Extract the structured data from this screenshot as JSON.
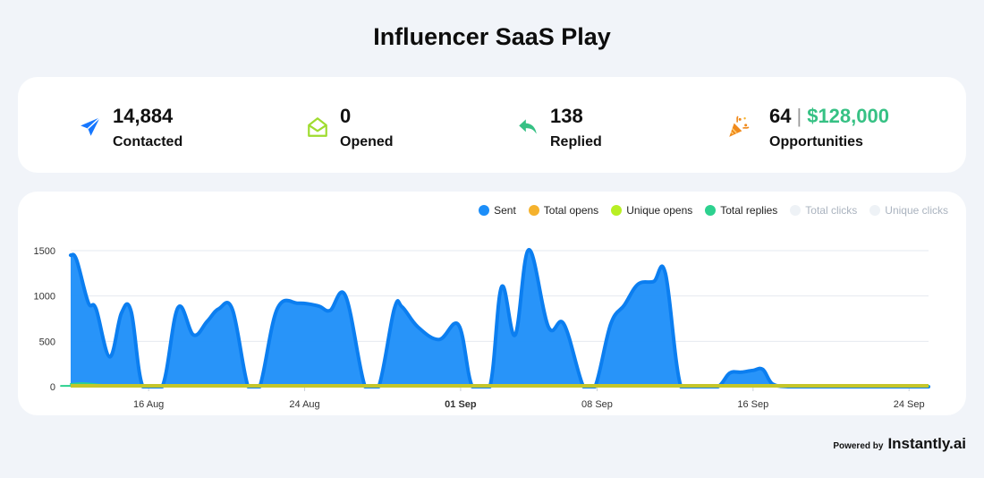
{
  "page": {
    "title": "Influencer SaaS Play"
  },
  "stats": [
    {
      "value": "14,884",
      "label": "Contacted",
      "icon": "paper-plane-icon",
      "color": "#1677ff"
    },
    {
      "value": "0",
      "label": "Opened",
      "icon": "open-envelope-icon",
      "color": "#9fdc2f"
    },
    {
      "value": "138",
      "label": "Replied",
      "icon": "reply-arrow-icon",
      "color": "#36c184"
    },
    {
      "value": "64",
      "separator": "|",
      "money": "$128,000",
      "label": "Opportunities",
      "icon": "party-popper-icon",
      "color": "#f08a1c"
    }
  ],
  "legend": [
    {
      "name": "Sent",
      "color": "#1c8ef9",
      "muted": false
    },
    {
      "name": "Total opens",
      "color": "#f5b22d",
      "muted": false
    },
    {
      "name": "Unique opens",
      "color": "#b8ef23",
      "muted": false
    },
    {
      "name": "Total replies",
      "color": "#2dd18f",
      "muted": false
    },
    {
      "name": "Total clicks",
      "color": "#eef2f6",
      "muted": true
    },
    {
      "name": "Unique clicks",
      "color": "#eef2f6",
      "muted": true
    }
  ],
  "chart_data": {
    "type": "area",
    "x_ticks": [
      {
        "label": "16 Aug",
        "day": 16,
        "bold": false
      },
      {
        "label": "24 Aug",
        "day": 24,
        "bold": false
      },
      {
        "label": "01 Sep",
        "day": 32,
        "bold": true
      },
      {
        "label": "08 Sep",
        "day": 39,
        "bold": false
      },
      {
        "label": "16 Sep",
        "day": 47,
        "bold": false
      },
      {
        "label": "24 Sep",
        "day": 55,
        "bold": false
      }
    ],
    "y_ticks": [
      0,
      500,
      1000,
      1500
    ],
    "ylim": [
      0,
      1500
    ],
    "xlim": [
      12,
      56
    ],
    "grid": true,
    "legend_position": "top-right",
    "series": [
      {
        "name": "Sent",
        "color": "#1c8ef9",
        "x": [
          12.0,
          12.3,
          12.9,
          13.3,
          14.0,
          14.6,
          15.1,
          15.7,
          16.7,
          17.5,
          18.3,
          19.0,
          19.6,
          20.3,
          21.1,
          21.7,
          22.6,
          23.7,
          24.7,
          25.3,
          26.1,
          27.1,
          27.8,
          28.6,
          29.0,
          29.8,
          30.9,
          31.9,
          32.6,
          33.5,
          34.1,
          34.8,
          35.5,
          36.5,
          37.3,
          38.3,
          38.9,
          39.7,
          40.4,
          41.1,
          41.9,
          42.5,
          43.3,
          44.3,
          45.2,
          45.8,
          46.4,
          47.0,
          47.5,
          48.0,
          48.8,
          49.8,
          50.4,
          51.4,
          52.3,
          53.0,
          53.7,
          54.6,
          55.3,
          55.8,
          56.0
        ],
        "y": [
          1450,
          1400,
          930,
          860,
          330,
          810,
          830,
          0,
          0,
          870,
          570,
          720,
          860,
          850,
          0,
          0,
          860,
          920,
          890,
          840,
          1000,
          0,
          0,
          860,
          880,
          660,
          520,
          680,
          0,
          0,
          1100,
          570,
          1510,
          660,
          690,
          0,
          0,
          690,
          900,
          1130,
          1160,
          1250,
          0,
          0,
          0,
          150,
          160,
          180,
          190,
          30,
          0,
          0,
          0,
          0,
          0,
          0,
          0,
          0,
          0,
          0,
          0
        ]
      },
      {
        "name": "Total replies",
        "color": "#2dd18f",
        "x": [
          12.0,
          12.5,
          13.0,
          13.5,
          14.2,
          15.0,
          56.0
        ],
        "y": [
          30,
          38,
          34,
          22,
          12,
          8,
          8
        ]
      },
      {
        "name": "Unique opens",
        "color": "#b8ef23",
        "x": [
          12.0,
          56.0
        ],
        "y": [
          0,
          0
        ]
      }
    ]
  },
  "footer": {
    "powered_label": "Powered by",
    "brand": "Instantly.ai"
  }
}
